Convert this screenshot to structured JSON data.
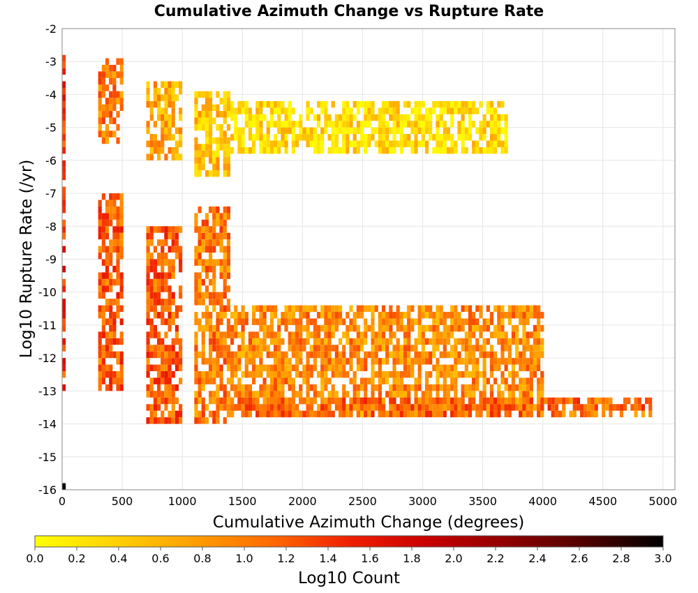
{
  "chart_data": {
    "type": "heatmap",
    "title": "Cumulative Azimuth Change vs Rupture Rate",
    "xlabel": "Cumulative Azimuth Change (degrees)",
    "ylabel": "Log10 Rupture Rate (/yr)",
    "xlim": [
      0,
      5100
    ],
    "ylim": [
      -16,
      -2
    ],
    "x_ticks": [
      "0",
      "500",
      "1000",
      "1500",
      "2000",
      "2500",
      "3000",
      "3500",
      "4000",
      "4500",
      "5000"
    ],
    "y_ticks": [
      "-2",
      "-3",
      "-4",
      "-5",
      "-6",
      "-7",
      "-8",
      "-9",
      "-10",
      "-11",
      "-12",
      "-13",
      "-14",
      "-15",
      "-16"
    ],
    "grid": true,
    "bin_width_x": 30,
    "bin_width_y": 0.2,
    "colorbar": {
      "label": "Log10 Count",
      "range": [
        0.0,
        3.0
      ],
      "ticks": [
        "0.0",
        "0.2",
        "0.4",
        "0.6",
        "0.8",
        "1.0",
        "1.2",
        "1.4",
        "1.6",
        "1.8",
        "2.0",
        "2.2",
        "2.4",
        "2.6",
        "2.8",
        "3.0"
      ],
      "colors": [
        "#ffff00",
        "#ffd200",
        "#ffa000",
        "#ff6a00",
        "#f02000",
        "#c80000",
        "#900000",
        "#500000",
        "#000000"
      ]
    },
    "density_regions": [
      {
        "x": [
          0,
          30
        ],
        "y": [
          -13,
          -2.7
        ],
        "level": 1.4
      },
      {
        "x": [
          300,
          500
        ],
        "y": [
          -13,
          -7
        ],
        "level": 1.2
      },
      {
        "x": [
          300,
          500
        ],
        "y": [
          -5.5,
          -3
        ],
        "level": 1.0
      },
      {
        "x": [
          700,
          1000
        ],
        "y": [
          -14,
          -8
        ],
        "level": 1.2
      },
      {
        "x": [
          700,
          1000
        ],
        "y": [
          -6,
          -3.6
        ],
        "level": 0.7
      },
      {
        "x": [
          1100,
          1400
        ],
        "y": [
          -14,
          -7.5
        ],
        "level": 1.0
      },
      {
        "x": [
          1100,
          1400
        ],
        "y": [
          -6.5,
          -4
        ],
        "level": 0.5
      },
      {
        "x": [
          1400,
          4000
        ],
        "y": [
          -13.8,
          -10.5
        ],
        "level": 0.9
      },
      {
        "x": [
          1400,
          4900
        ],
        "y": [
          -13.8,
          -13.2
        ],
        "level": 1.1
      },
      {
        "x": [
          1400,
          3700
        ],
        "y": [
          -5.8,
          -4.3
        ],
        "level": 0.3
      },
      {
        "x": [
          0,
          30
        ],
        "y": [
          -16,
          -15.8
        ],
        "level": 2.8
      }
    ]
  }
}
